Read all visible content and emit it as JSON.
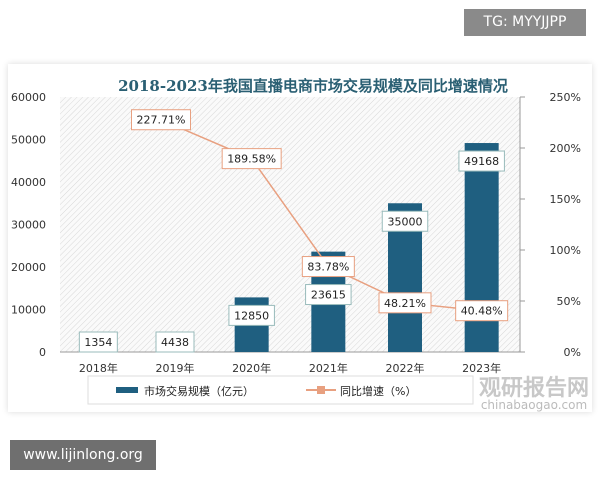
{
  "watermark_top": "TG: MYYJJPP",
  "watermark_bottom": "www.lijinlong.org",
  "source_logo": {
    "name": "观研报告网",
    "url_text": "chinabaogao.com"
  },
  "chart_data": {
    "type": "bar+line",
    "title": "2018-2023年我国直播电商市场交易规模及同比增速情况",
    "categories": [
      "2018年",
      "2019年",
      "2020年",
      "2021年",
      "2022年",
      "2023年"
    ],
    "series": [
      {
        "name": "市场交易规模（亿元）",
        "type": "bar",
        "axis": "left",
        "color": "#1f5f80",
        "values": [
          1354,
          4438,
          12850,
          23615,
          35000,
          49168
        ],
        "labels": [
          "1354",
          "4438",
          "12850",
          "23615",
          "35000",
          "49168"
        ]
      },
      {
        "name": "同比增速（%）",
        "type": "line",
        "axis": "right",
        "color": "#e8a080",
        "values": [
          null,
          227.71,
          189.58,
          83.78,
          48.21,
          40.48
        ],
        "labels": [
          "",
          "227.71%",
          "189.58%",
          "83.78%",
          "48.21%",
          "40.48%"
        ]
      }
    ],
    "ylim_left": [
      0,
      60000
    ],
    "yticks_left": [
      "0",
      "10000",
      "20000",
      "30000",
      "40000",
      "50000",
      "60000"
    ],
    "ylim_right": [
      0,
      250
    ],
    "yticks_right": [
      "0%",
      "50%",
      "100%",
      "150%",
      "200%",
      "250%"
    ],
    "legend_position": "bottom",
    "grid": false
  }
}
